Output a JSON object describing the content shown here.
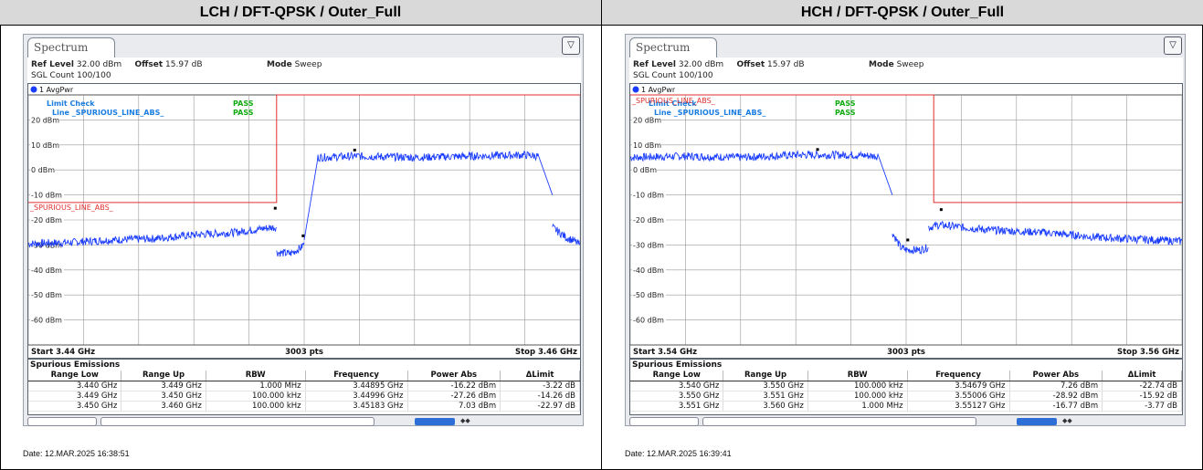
{
  "panels": [
    {
      "title": "LCH / DFT-QPSK / Outer_Full",
      "tab_label": "Spectrum",
      "ref_level_label": "Ref Level",
      "ref_level_value": "32.00 dBm",
      "offset_label": "Offset",
      "offset_value": "15.97 dB",
      "mode_label": "Mode",
      "mode_value": "Sweep",
      "sgl_count": "SGL Count 100/100",
      "trace_label": "1 AvgPwr",
      "limit_check_label": "Limit Check",
      "limit_check_status": "PASS",
      "limit_line_label": "Line _SPURIOUS_LINE_ABS_",
      "limit_line_status": "PASS",
      "limit_line_name": "_SPURIOUS_LINE_ABS_",
      "start_label": "Start 3.44 GHz",
      "pts_label": "3003 pts",
      "stop_label": "Stop 3.46 GHz",
      "emissions_title": "Spurious Emissions",
      "table_headers": [
        "Range Low",
        "Range Up",
        "RBW",
        "Frequency",
        "Power Abs",
        "ΔLimit"
      ],
      "table_rows": [
        [
          "3.440 GHz",
          "3.449 GHz",
          "1.000 MHz",
          "3.44895 GHz",
          "-16.22 dBm",
          "-3.22 dB"
        ],
        [
          "3.449 GHz",
          "3.450 GHz",
          "100.000 kHz",
          "3.44996 GHz",
          "-27.26 dBm",
          "-14.26 dB"
        ],
        [
          "3.450 GHz",
          "3.460 GHz",
          "100.000 kHz",
          "3.45183 GHz",
          "7.03 dBm",
          "-22.97 dB"
        ]
      ],
      "date": "Date: 12.MAR.2025  16:38:51"
    },
    {
      "title": "HCH / DFT-QPSK / Outer_Full",
      "tab_label": "Spectrum",
      "ref_level_label": "Ref Level",
      "ref_level_value": "32.00 dBm",
      "offset_label": "Offset",
      "offset_value": "15.97 dB",
      "mode_label": "Mode",
      "mode_value": "Sweep",
      "sgl_count": "SGL Count 100/100",
      "trace_label": "1 AvgPwr",
      "limit_check_label": "Limit Check",
      "limit_check_status": "PASS",
      "limit_line_label": "Line _SPURIOUS_LINE_ABS_",
      "limit_line_status": "PASS",
      "limit_line_name": "_SPURIOUS_LINE_ABS_",
      "start_label": "Start 3.54 GHz",
      "pts_label": "3003 pts",
      "stop_label": "Stop 3.56 GHz",
      "emissions_title": "Spurious Emissions",
      "table_headers": [
        "Range Low",
        "Range Up",
        "RBW",
        "Frequency",
        "Power Abs",
        "ΔLimit"
      ],
      "table_rows": [
        [
          "3.540 GHz",
          "3.550 GHz",
          "100.000 kHz",
          "3.54679 GHz",
          "7.26 dBm",
          "-22.74 dB"
        ],
        [
          "3.550 GHz",
          "3.551 GHz",
          "100.000 kHz",
          "3.55006 GHz",
          "-28.92 dBm",
          "-15.92 dB"
        ],
        [
          "3.551 GHz",
          "3.560 GHz",
          "1.000 MHz",
          "3.55127 GHz",
          "-16.77 dBm",
          "-3.77 dB"
        ]
      ],
      "date": "Date: 12.MAR.2025  16:39:41"
    }
  ],
  "chart_data": [
    {
      "type": "line",
      "title": "LCH / DFT-QPSK / Outer_Full",
      "xlabel": "",
      "ylabel": "",
      "xlim": [
        3.44,
        3.46
      ],
      "ylim": [
        -70,
        30
      ],
      "y_ticks": [
        "20 dBm",
        "10 dBm",
        "0 dBm",
        "-10 dBm",
        "-20 dBm",
        "-30 dBm",
        "-40 dBm",
        "-50 dBm",
        "-60 dBm"
      ],
      "y_tick_values": [
        20,
        10,
        0,
        -10,
        -20,
        -30,
        -40,
        -50,
        -60
      ],
      "grid": true,
      "series_color": "#1a3cff",
      "limit_color": "#e03030",
      "limit_line": [
        [
          3.44,
          -13
        ],
        [
          3.449,
          -13
        ],
        [
          3.449,
          30
        ],
        [
          3.46,
          30
        ]
      ],
      "markers": [
        [
          3.44895,
          -16.22
        ],
        [
          3.44996,
          -27.26
        ],
        [
          3.45183,
          7.03
        ]
      ],
      "trace_segments": [
        {
          "x": [
            3.44,
            3.4415,
            3.443,
            3.4445,
            3.446,
            3.4475,
            3.4488,
            3.449
          ],
          "y": [
            -29.5,
            -29,
            -28,
            -27.5,
            -26,
            -25,
            -23,
            -23
          ]
        },
        {
          "x": [
            3.449,
            3.4495,
            3.4499,
            3.45
          ],
          "y": [
            -33,
            -33.5,
            -31,
            -29
          ]
        },
        {
          "x": [
            3.45,
            3.4505,
            3.452,
            3.454,
            3.456,
            3.458,
            3.4585,
            3.459
          ],
          "y": [
            -28,
            5,
            5.5,
            5,
            5.5,
            6,
            5.5,
            -10
          ]
        },
        {
          "x": [
            3.459,
            3.4595,
            3.4598,
            3.46
          ],
          "y": [
            -23,
            -27,
            -28.5,
            -30
          ]
        }
      ]
    },
    {
      "type": "line",
      "title": "HCH / DFT-QPSK / Outer_Full",
      "xlabel": "",
      "ylabel": "",
      "xlim": [
        3.54,
        3.56
      ],
      "ylim": [
        -70,
        30
      ],
      "y_ticks": [
        "20 dBm",
        "10 dBm",
        "0 dBm",
        "-10 dBm",
        "-20 dBm",
        "-30 dBm",
        "-40 dBm",
        "-50 dBm",
        "-60 dBm"
      ],
      "y_tick_values": [
        20,
        10,
        0,
        -10,
        -20,
        -30,
        -40,
        -50,
        -60
      ],
      "grid": true,
      "series_color": "#1a3cff",
      "limit_color": "#e03030",
      "limit_line": [
        [
          3.54,
          30
        ],
        [
          3.551,
          30
        ],
        [
          3.551,
          -13
        ],
        [
          3.56,
          -13
        ]
      ],
      "markers": [
        [
          3.54679,
          7.26
        ],
        [
          3.55006,
          -28.92
        ],
        [
          3.55127,
          -16.77
        ]
      ],
      "trace_segments": [
        {
          "x": [
            3.54,
            3.542,
            3.544,
            3.546,
            3.548,
            3.549,
            3.5495
          ],
          "y": [
            5,
            5.5,
            5,
            6,
            6,
            5.5,
            -10
          ]
        },
        {
          "x": [
            3.5495,
            3.5498,
            3.55,
            3.5505,
            3.5508
          ],
          "y": [
            -25,
            -31,
            -32,
            -32,
            -31
          ]
        },
        {
          "x": [
            3.5508,
            3.5512,
            3.553,
            3.555,
            3.557,
            3.559,
            3.56
          ],
          "y": [
            -23,
            -22,
            -24,
            -25,
            -27,
            -28,
            -28.5
          ]
        }
      ]
    }
  ]
}
